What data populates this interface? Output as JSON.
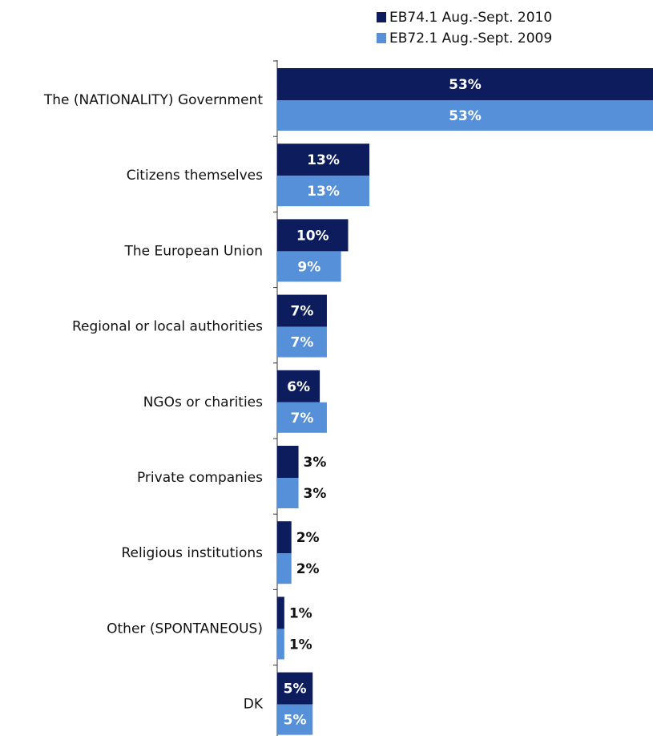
{
  "chart_data": {
    "type": "bar",
    "orientation": "horizontal",
    "categories": [
      "The (NATIONALITY) Government",
      "Citizens themselves",
      "The European Union",
      "Regional or local authorities",
      "NGOs or charities",
      "Private companies",
      "Religious institutions",
      "Other (SPONTANEOUS)",
      "DK"
    ],
    "series": [
      {
        "name": "EB74.1 Aug.-Sept. 2010",
        "color": "#0c1c5c",
        "values": [
          53,
          13,
          10,
          7,
          6,
          3,
          2,
          1,
          5
        ],
        "value_labels": [
          "53%",
          "13%",
          "10%",
          "7%",
          "6%",
          "3%",
          "2%",
          "1%",
          "5%"
        ]
      },
      {
        "name": "EB72.1 Aug.-Sept. 2009",
        "color": "#5590d8",
        "values": [
          53,
          13,
          9,
          7,
          7,
          3,
          2,
          1,
          5
        ],
        "value_labels": [
          "53%",
          "13%",
          "9%",
          "7%",
          "7%",
          "3%",
          "2%",
          "1%",
          "5%"
        ]
      }
    ],
    "legend": "top-right"
  }
}
